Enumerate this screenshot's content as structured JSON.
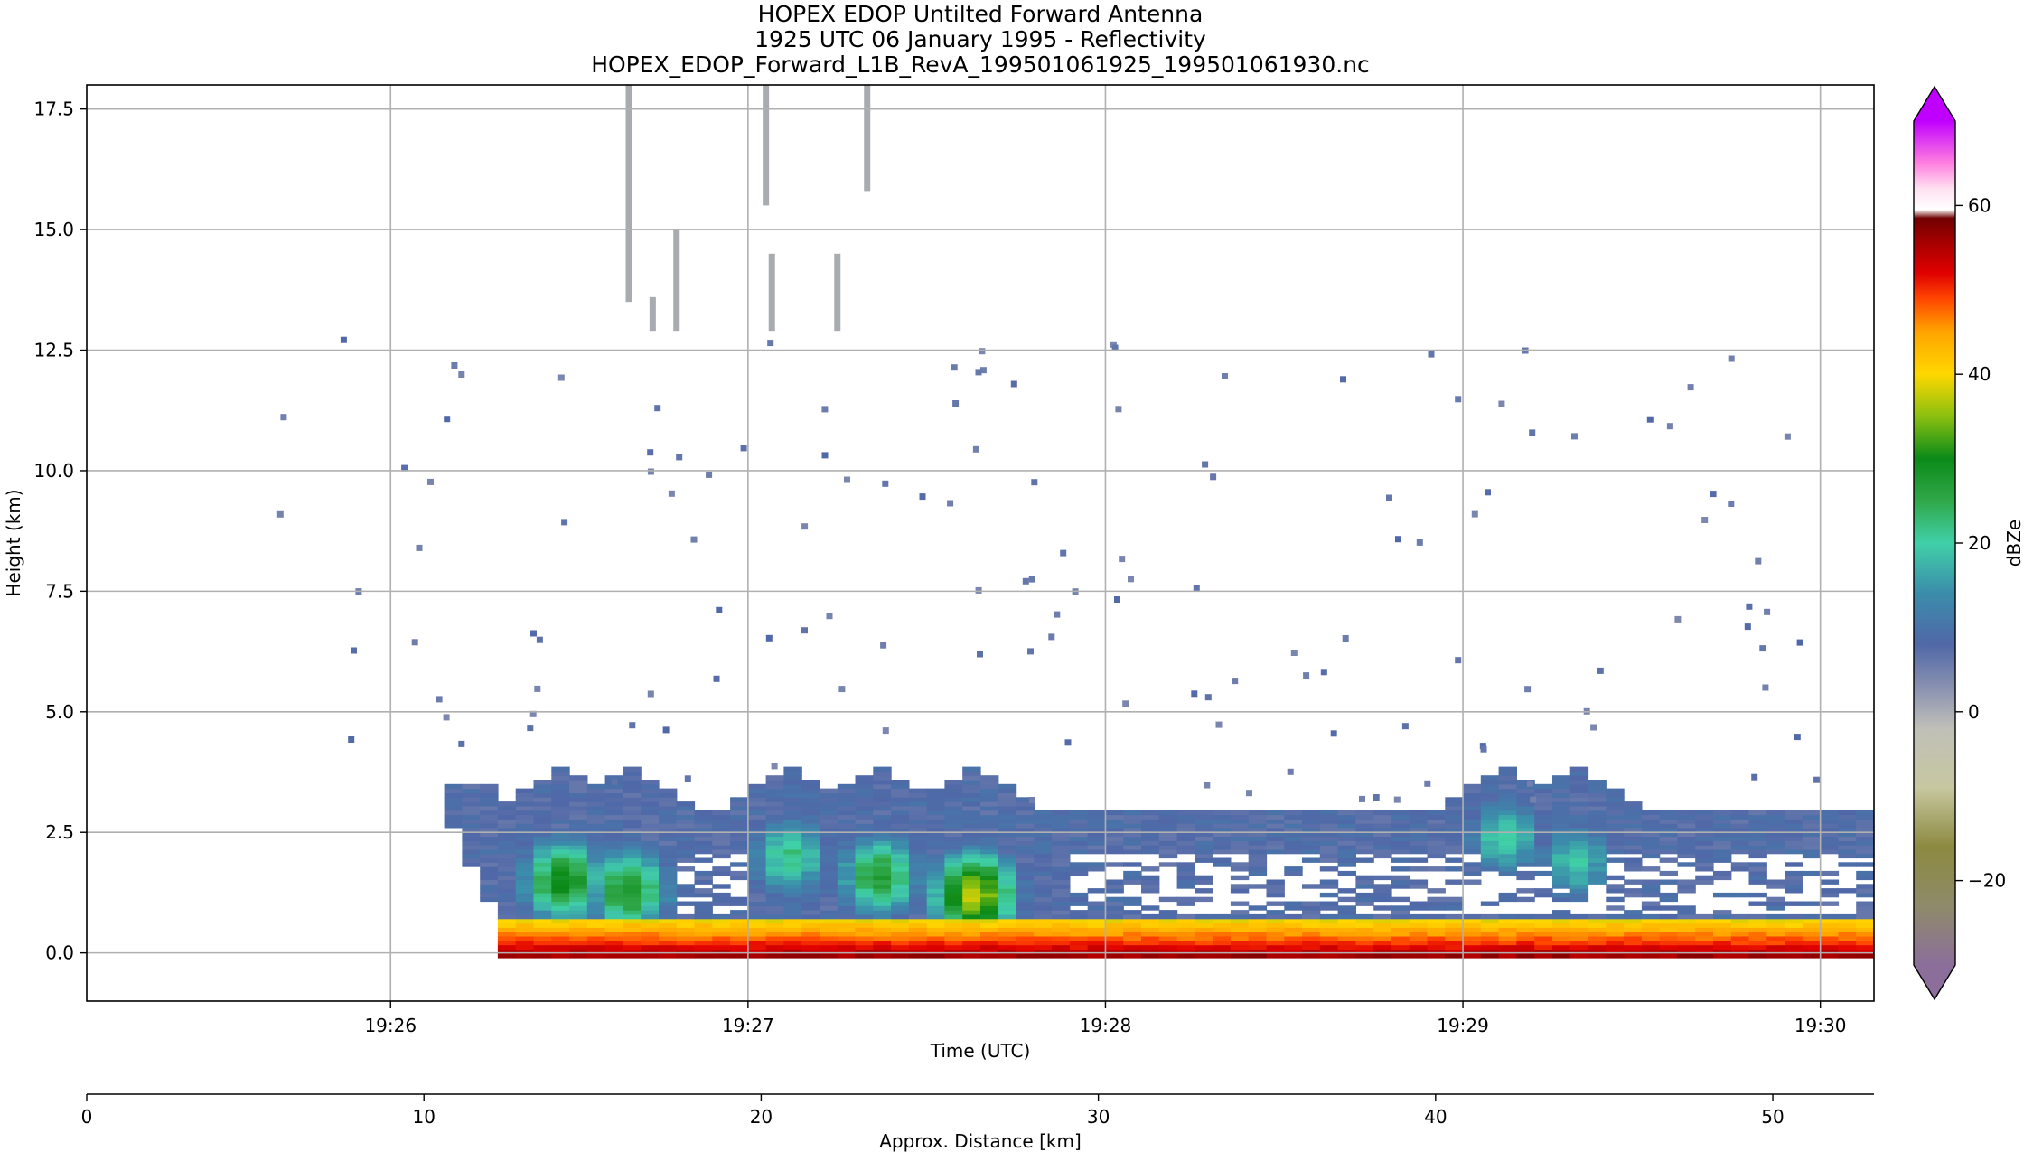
{
  "chart_data": {
    "type": "heatmap",
    "title": [
      "HOPEX EDOP Untilted Forward Antenna",
      "1925 UTC 06 January 1995 - Reflectivity",
      "HOPEX_EDOP_Forward_L1B_RevA_199501061925_199501061930.nc"
    ],
    "xlabel": "Time (UTC)",
    "ylabel": "Height (km)",
    "x2label": "Approx. Distance [km]",
    "colorbar_label": "dBZe",
    "x_time_range": [
      "19:25:09",
      "19:30:09"
    ],
    "x_ticks": [
      "19:26",
      "19:27",
      "19:28",
      "19:29",
      "19:30"
    ],
    "y_ticks": [
      "0.0",
      "2.5",
      "5.0",
      "7.5",
      "10.0",
      "12.5",
      "15.0",
      "17.5"
    ],
    "ylim": [
      -1.0,
      18.0
    ],
    "x2_ticks": [
      "0",
      "10",
      "20",
      "30",
      "40",
      "50"
    ],
    "x2lim": [
      0,
      53
    ],
    "cbar_ticks": [
      "60",
      "40",
      "20",
      "0",
      "−20"
    ],
    "cbar_range": [
      -30,
      70
    ],
    "grid": true,
    "colormap": [
      {
        "v": -30,
        "c": "#8b6f9a"
      },
      {
        "v": -23,
        "c": "#8f8a6a"
      },
      {
        "v": -16,
        "c": "#8c8a40"
      },
      {
        "v": -9,
        "c": "#c7c7a0"
      },
      {
        "v": -2,
        "c": "#c0c0b8"
      },
      {
        "v": 3,
        "c": "#8890b0"
      },
      {
        "v": 8,
        "c": "#5068a8"
      },
      {
        "v": 14,
        "c": "#3b8cab"
      },
      {
        "v": 20,
        "c": "#40d0a8"
      },
      {
        "v": 25,
        "c": "#30a84a"
      },
      {
        "v": 30,
        "c": "#0b8a18"
      },
      {
        "v": 35,
        "c": "#8ac010"
      },
      {
        "v": 40,
        "c": "#ffd700"
      },
      {
        "v": 45,
        "c": "#ffa500"
      },
      {
        "v": 49,
        "c": "#ff4500"
      },
      {
        "v": 52,
        "c": "#e00000"
      },
      {
        "v": 56,
        "c": "#a00000"
      },
      {
        "v": 58.5,
        "c": "#700000"
      },
      {
        "v": 59.5,
        "c": "#ffffff"
      },
      {
        "v": 62,
        "c": "#ffe0f0"
      },
      {
        "v": 65,
        "c": "#ff80e0"
      },
      {
        "v": 70,
        "c": "#c000ff"
      }
    ],
    "missing_value_color": "#a8acb0",
    "series": [
      {
        "name": "ground_echo",
        "x_start": "19:26:18",
        "x_end": "19:30:09",
        "y_range": [
          -0.1,
          0.7
        ],
        "dbz_range": [
          35,
          58
        ]
      },
      {
        "name": "cloud_layer",
        "x_start": "19:26:09",
        "x_end": "19:30:09",
        "y_range": [
          0.7,
          3.0
        ],
        "dbz_mean": 8
      },
      {
        "name": "convective_cores",
        "cells": [
          {
            "x": "19:26:29",
            "y": 1.5,
            "dbz": 30
          },
          {
            "x": "19:26:40",
            "y": 1.3,
            "dbz": 28
          },
          {
            "x": "19:27:07",
            "y": 2.0,
            "dbz": 22
          },
          {
            "x": "19:27:22",
            "y": 1.6,
            "dbz": 27
          },
          {
            "x": "19:27:38",
            "y": 1.2,
            "dbz": 38
          },
          {
            "x": "19:29:07",
            "y": 2.4,
            "dbz": 20
          },
          {
            "x": "19:29:19",
            "y": 1.9,
            "dbz": 19
          }
        ]
      },
      {
        "name": "missing_columns",
        "columns": [
          {
            "x": "19:26:40",
            "y_range": [
              13.5,
              18.0
            ]
          },
          {
            "x": "19:26:44",
            "y_range": [
              12.9,
              13.6
            ]
          },
          {
            "x": "19:26:48",
            "y_range": [
              12.9,
              15.0
            ]
          },
          {
            "x": "19:27:03",
            "y_range": [
              15.5,
              18.0
            ]
          },
          {
            "x": "19:27:04",
            "y_range": [
              12.9,
              14.5
            ]
          },
          {
            "x": "19:27:15",
            "y_range": [
              12.9,
              14.5
            ]
          },
          {
            "x": "19:27:20",
            "y_range": [
              15.8,
              18.0
            ]
          }
        ]
      }
    ]
  }
}
